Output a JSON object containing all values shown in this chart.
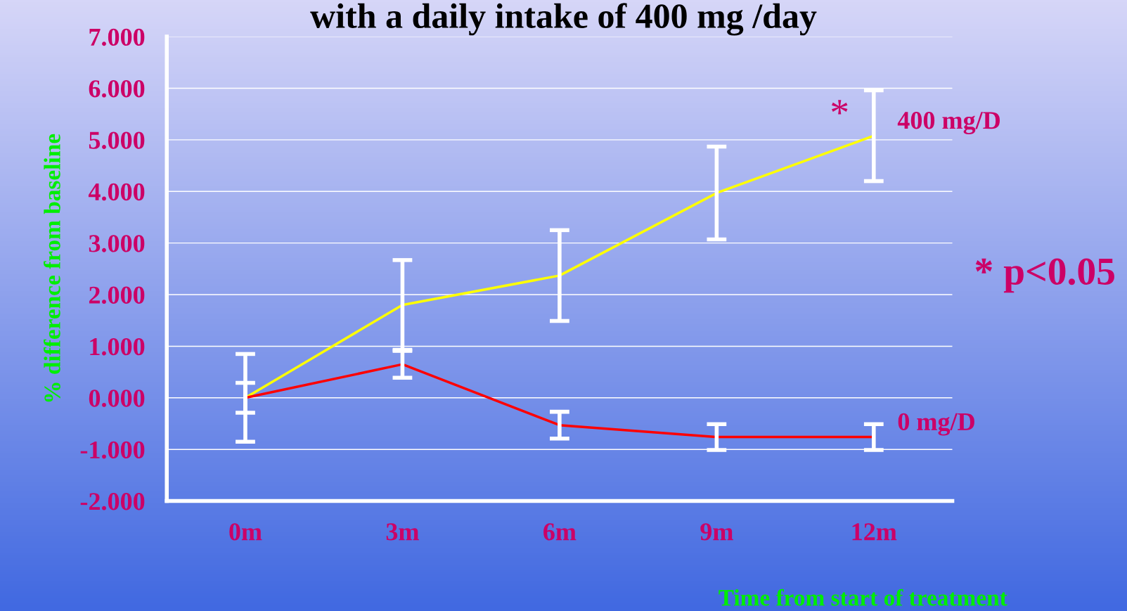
{
  "chart_data": {
    "type": "line",
    "title": "with a daily intake of 400 mg /day",
    "xlabel": "Time from start of treatment",
    "ylabel": "% difference from baseline",
    "categories": [
      "0m",
      "3m",
      "6m",
      "9m",
      "12m"
    ],
    "series": [
      {
        "name": "400 mg/D",
        "color": "#ffff00",
        "values": [
          0,
          1.8,
          2.37,
          3.97,
          5.08
        ],
        "errors": [
          0.85,
          0.87,
          0.88,
          0.9,
          0.88
        ]
      },
      {
        "name": "0 mg/D",
        "color": "#ff0000",
        "values": [
          0,
          0.65,
          -0.53,
          -0.76,
          -0.76
        ],
        "errors": [
          0.29,
          0.26,
          0.26,
          0.25,
          0.25
        ]
      }
    ],
    "ylim": [
      -2,
      7
    ],
    "yticks": [
      {
        "value": -2,
        "label": "-2.000"
      },
      {
        "value": -1,
        "label": "-1.000"
      },
      {
        "value": 0,
        "label": "0.000"
      },
      {
        "value": 1,
        "label": "1.000"
      },
      {
        "value": 2,
        "label": "2.000"
      },
      {
        "value": 3,
        "label": "3.000"
      },
      {
        "value": 4,
        "label": "4.000"
      },
      {
        "value": 5,
        "label": "5.000"
      },
      {
        "value": 6,
        "label": "6.000"
      },
      {
        "value": 7,
        "label": "7.000"
      }
    ],
    "grid": "y",
    "legend": false,
    "marker": "none",
    "line_style": "solid",
    "annotations": [
      {
        "text": "*",
        "x": "12m",
        "y": 5.08
      },
      "* p<0.05"
    ]
  }
}
